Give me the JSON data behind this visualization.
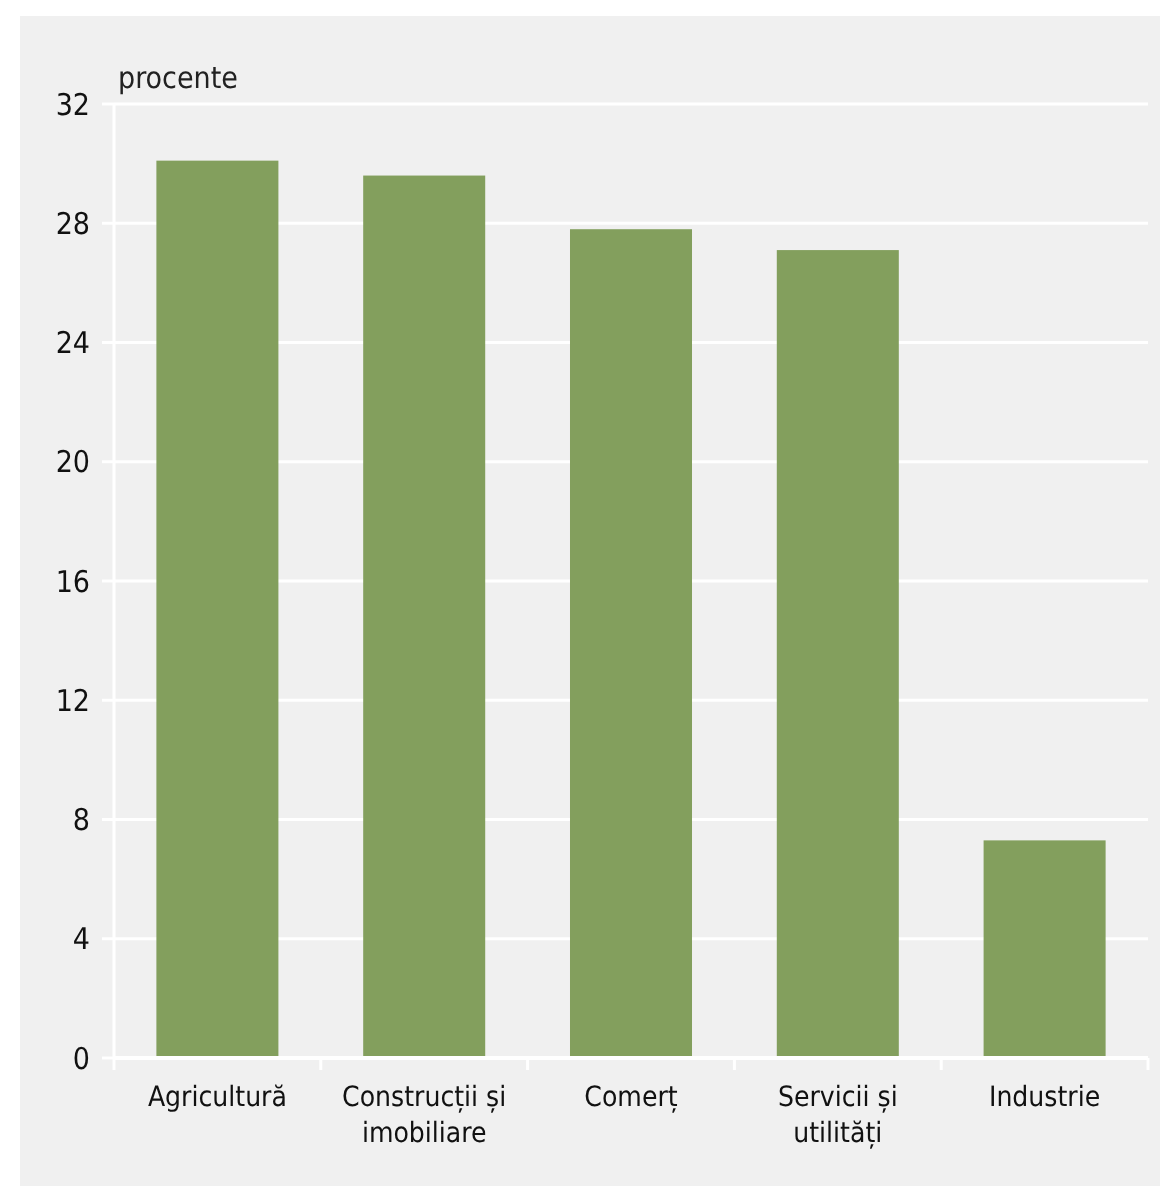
{
  "chart_data": {
    "type": "bar",
    "ylabel": "procente",
    "categories": [
      "Agricultură",
      "Construcții și imobiliare",
      "Comerț",
      "Servicii și utilități",
      "Industrie"
    ],
    "values": [
      30.1,
      29.6,
      27.8,
      27.1,
      7.3
    ],
    "color": "#839f5d",
    "ylim": [
      0,
      32
    ],
    "yticks": [
      0,
      4,
      8,
      12,
      16,
      20,
      24,
      28,
      32
    ],
    "grid": "y"
  }
}
